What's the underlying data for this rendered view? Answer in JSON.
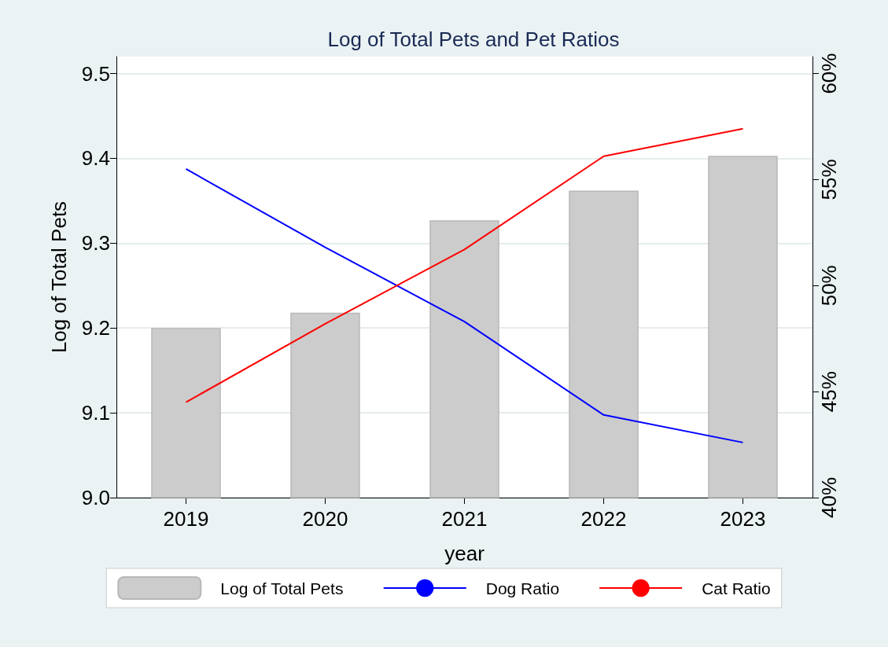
{
  "chart_data": {
    "type": "bar",
    "title": "Log of Total Pets and Pet Ratios",
    "xlabel": "year",
    "ylabel": "Log of Total Pets",
    "categories": [
      "2019",
      "2020",
      "2021",
      "2022",
      "2023"
    ],
    "series": [
      {
        "name": "Log of Total Pets",
        "color": "#cccccc",
        "values": [
          9.2,
          9.218,
          9.327,
          9.362,
          9.403
        ]
      },
      {
        "name": "Dog Ratio",
        "type": "line",
        "axis": "y2",
        "color": "#0000ff",
        "values": [
          55.5,
          51.8,
          48.3,
          43.9,
          42.6
        ]
      },
      {
        "name": "Cat Ratio",
        "type": "line",
        "axis": "y2",
        "color": "#ff0000",
        "values": [
          44.5,
          48.2,
          51.7,
          56.1,
          57.4
        ]
      }
    ],
    "ylim": [
      9.0,
      9.52
    ],
    "yticks": [
      {
        "value": 9,
        "label": "9.0"
      },
      9.1,
      9.2,
      9.3,
      9.4,
      9.5
    ],
    "y2lim": [
      40,
      60.8
    ],
    "y2ticks": [
      {
        "value": 40,
        "label": "40%"
      },
      {
        "value": 45,
        "label": "45%"
      },
      {
        "value": 50,
        "label": "50%"
      },
      {
        "value": 55,
        "label": "55%"
      },
      {
        "value": 60,
        "label": "60%"
      }
    ],
    "grid": "y",
    "legend": "bottom",
    "marker": "none",
    "line_style": "solid"
  }
}
